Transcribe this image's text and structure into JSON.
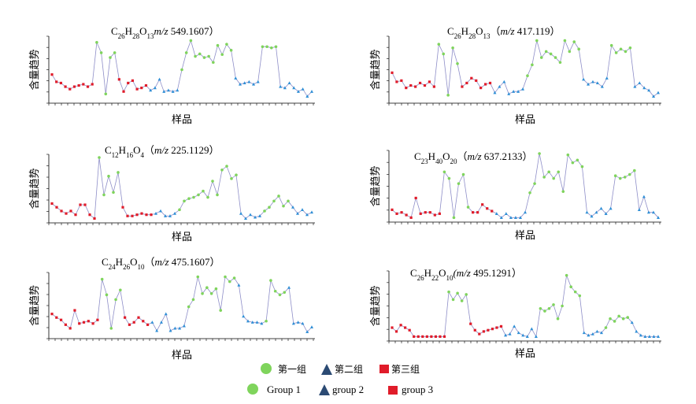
{
  "colors": {
    "group1": "#7fd45c",
    "group2": "#2f8fd6",
    "group3": "#e01c2a",
    "legend_triangle": "#2b4a73",
    "line": "#8e8ec8"
  },
  "legend": {
    "cn": [
      "第一组",
      "第二组",
      "第三组"
    ],
    "en": [
      "Group 1",
      "group 2",
      "group 3"
    ]
  },
  "chart_data": [
    {
      "type": "line",
      "title": {
        "prefix": "C26H28O13（",
        "mz": "m/z",
        "value": " 549.1607）",
        "formula": [
          [
            "C",
            ""
          ],
          [
            "26",
            "sub"
          ],
          [
            "H",
            ""
          ],
          [
            "28",
            "sub"
          ],
          [
            "O",
            ""
          ],
          [
            "13",
            "sub"
          ]
        ]
      },
      "xlabel": "样品",
      "ylabel": "含量趋势",
      "values": [
        0.42,
        0.3,
        0.28,
        0.22,
        0.18,
        0.22,
        0.24,
        0.26,
        0.22,
        0.26,
        0.95,
        0.78,
        0.1,
        0.7,
        0.78,
        0.34,
        0.14,
        0.28,
        0.32,
        0.18,
        0.2,
        0.24,
        0.16,
        0.2,
        0.34,
        0.14,
        0.16,
        0.14,
        0.16,
        0.5,
        0.78,
        0.98,
        0.72,
        0.76,
        0.7,
        0.72,
        0.62,
        0.9,
        0.75,
        0.92,
        0.82,
        0.36,
        0.26,
        0.28,
        0.3,
        0.26,
        0.3,
        0.88,
        0.88,
        0.86,
        0.88,
        0.22,
        0.2,
        0.28,
        0.2,
        0.14,
        0.18,
        0.06,
        0.14
      ],
      "groups": [
        3,
        3,
        3,
        3,
        3,
        3,
        3,
        3,
        3,
        3,
        1,
        1,
        1,
        1,
        1,
        3,
        3,
        3,
        3,
        3,
        3,
        3,
        2,
        2,
        2,
        2,
        2,
        2,
        2,
        1,
        1,
        1,
        1,
        1,
        1,
        1,
        1,
        1,
        1,
        1,
        1,
        2,
        2,
        2,
        2,
        2,
        2,
        1,
        1,
        1,
        1,
        2,
        2,
        2,
        2,
        2,
        2,
        2,
        2
      ]
    },
    {
      "type": "line",
      "title": {
        "prefix": "",
        "mz": "m/z",
        "value": " 417.119）",
        "formula": [
          [
            "C",
            ""
          ],
          [
            "26",
            "sub"
          ],
          [
            "H",
            ""
          ],
          [
            "28",
            "sub"
          ],
          [
            "O",
            ""
          ],
          [
            "13",
            "sub"
          ],
          [
            "（",
            ""
          ]
        ]
      },
      "xlabel": "样品",
      "ylabel": "含量趋势",
      "values": [
        0.45,
        0.3,
        0.32,
        0.2,
        0.24,
        0.22,
        0.28,
        0.24,
        0.3,
        0.22,
        0.92,
        0.76,
        0.08,
        0.86,
        0.6,
        0.22,
        0.28,
        0.36,
        0.32,
        0.2,
        0.26,
        0.28,
        0.12,
        0.22,
        0.3,
        0.1,
        0.14,
        0.14,
        0.18,
        0.4,
        0.58,
        0.98,
        0.7,
        0.8,
        0.76,
        0.7,
        0.62,
        0.98,
        0.8,
        0.96,
        0.84,
        0.34,
        0.26,
        0.3,
        0.28,
        0.22,
        0.36,
        0.9,
        0.78,
        0.84,
        0.8,
        0.86,
        0.22,
        0.28,
        0.2,
        0.16,
        0.06,
        0.12
      ],
      "groups": [
        3,
        3,
        3,
        3,
        3,
        3,
        3,
        3,
        3,
        3,
        1,
        1,
        1,
        1,
        1,
        3,
        3,
        3,
        3,
        3,
        3,
        3,
        2,
        2,
        2,
        2,
        2,
        2,
        2,
        1,
        1,
        1,
        1,
        1,
        1,
        1,
        1,
        1,
        1,
        1,
        1,
        2,
        2,
        2,
        2,
        2,
        2,
        1,
        1,
        1,
        1,
        1,
        2,
        2,
        2,
        2,
        2,
        2
      ]
    },
    {
      "type": "line",
      "title": {
        "prefix": "",
        "mz": "m/z",
        "value": " 225.1129）",
        "formula": [
          [
            "C",
            ""
          ],
          [
            "12",
            "sub"
          ],
          [
            "H",
            ""
          ],
          [
            "16",
            "sub"
          ],
          [
            "O",
            ""
          ],
          [
            "4",
            "sub"
          ],
          [
            "（",
            ""
          ]
        ]
      },
      "xlabel": "样品",
      "ylabel": "含量趋势",
      "values": [
        0.26,
        0.2,
        0.14,
        0.1,
        0.14,
        0.08,
        0.24,
        0.24,
        0.08,
        0.02,
        1.0,
        0.4,
        0.7,
        0.44,
        0.76,
        0.2,
        0.06,
        0.06,
        0.08,
        0.1,
        0.08,
        0.08,
        0.1,
        0.14,
        0.06,
        0.06,
        0.1,
        0.16,
        0.3,
        0.34,
        0.36,
        0.4,
        0.46,
        0.36,
        0.62,
        0.4,
        0.8,
        0.86,
        0.66,
        0.72,
        0.1,
        0.02,
        0.08,
        0.04,
        0.06,
        0.14,
        0.2,
        0.3,
        0.38,
        0.22,
        0.3,
        0.2,
        0.1,
        0.16,
        0.08,
        0.12
      ],
      "groups": [
        3,
        3,
        3,
        3,
        3,
        3,
        3,
        3,
        3,
        3,
        1,
        1,
        1,
        1,
        1,
        3,
        3,
        3,
        3,
        3,
        3,
        3,
        2,
        2,
        2,
        2,
        2,
        1,
        1,
        1,
        1,
        1,
        1,
        1,
        1,
        1,
        1,
        1,
        1,
        1,
        2,
        2,
        2,
        2,
        2,
        1,
        1,
        1,
        1,
        1,
        1,
        2,
        2,
        2,
        2,
        2
      ]
    },
    {
      "type": "line",
      "title": {
        "prefix": "",
        "mz": "m/z",
        "value": " 637.2133）",
        "formula": [
          [
            "C",
            ""
          ],
          [
            "23",
            "sub"
          ],
          [
            "H",
            ""
          ],
          [
            "40",
            "sub"
          ],
          [
            "O",
            ""
          ],
          [
            "20",
            "sub"
          ],
          [
            "（",
            ""
          ]
        ]
      },
      "xlabel": "样品",
      "ylabel": "含量趋势",
      "values": [
        0.14,
        0.08,
        0.1,
        0.06,
        0.02,
        0.32,
        0.08,
        0.1,
        0.1,
        0.06,
        0.08,
        0.72,
        0.62,
        0.02,
        0.54,
        0.68,
        0.18,
        0.1,
        0.1,
        0.22,
        0.16,
        0.12,
        0.08,
        0.02,
        0.08,
        0.02,
        0.02,
        0.02,
        0.1,
        0.4,
        0.54,
        1.0,
        0.64,
        0.72,
        0.62,
        0.72,
        0.42,
        0.98,
        0.86,
        0.9,
        0.8,
        0.1,
        0.04,
        0.1,
        0.16,
        0.08,
        0.16,
        0.66,
        0.62,
        0.64,
        0.68,
        0.74,
        0.14,
        0.34,
        0.1,
        0.1,
        0.02
      ],
      "groups": [
        3,
        3,
        3,
        3,
        3,
        3,
        3,
        3,
        3,
        3,
        3,
        1,
        1,
        1,
        1,
        1,
        1,
        3,
        3,
        3,
        3,
        3,
        2,
        2,
        2,
        2,
        2,
        2,
        2,
        1,
        1,
        1,
        1,
        1,
        1,
        1,
        1,
        1,
        1,
        1,
        1,
        2,
        2,
        2,
        2,
        2,
        2,
        1,
        1,
        1,
        1,
        1,
        2,
        2,
        2,
        2,
        2
      ]
    },
    {
      "type": "line",
      "title": {
        "prefix": "",
        "mz": "m/z",
        "value": " 475.1607）",
        "formula": [
          [
            "C",
            ""
          ],
          [
            "24",
            "sub"
          ],
          [
            "H",
            ""
          ],
          [
            "26",
            "sub"
          ],
          [
            "O",
            ""
          ],
          [
            "10",
            "sub"
          ],
          [
            "（",
            ""
          ]
        ]
      },
      "xlabel": "样品",
      "ylabel": "含量趋势",
      "values": [
        0.36,
        0.3,
        0.26,
        0.18,
        0.12,
        0.42,
        0.2,
        0.22,
        0.24,
        0.2,
        0.26,
        0.94,
        0.68,
        0.12,
        0.6,
        0.76,
        0.3,
        0.18,
        0.22,
        0.3,
        0.24,
        0.18,
        0.22,
        0.08,
        0.22,
        0.36,
        0.08,
        0.12,
        0.12,
        0.16,
        0.48,
        0.6,
        0.98,
        0.7,
        0.8,
        0.7,
        0.78,
        0.42,
        0.98,
        0.9,
        0.96,
        0.84,
        0.32,
        0.24,
        0.22,
        0.22,
        0.2,
        0.24,
        0.92,
        0.74,
        0.68,
        0.72,
        0.8,
        0.2,
        0.22,
        0.2,
        0.06,
        0.14
      ],
      "groups": [
        3,
        3,
        3,
        3,
        3,
        3,
        3,
        3,
        3,
        3,
        3,
        1,
        1,
        1,
        1,
        1,
        3,
        3,
        3,
        3,
        3,
        3,
        2,
        2,
        2,
        2,
        2,
        2,
        2,
        2,
        1,
        1,
        1,
        1,
        1,
        1,
        1,
        1,
        1,
        1,
        1,
        2,
        2,
        2,
        2,
        2,
        2,
        1,
        1,
        1,
        1,
        1,
        2,
        2,
        2,
        2,
        2,
        2
      ]
    },
    {
      "type": "line",
      "title": {
        "prefix": "",
        "mz": "(m/z",
        "value": " 495.1291）",
        "formula": [
          [
            "C",
            ""
          ],
          [
            "26",
            "sub"
          ],
          [
            "H",
            ""
          ],
          [
            "22",
            "sub"
          ],
          [
            "O",
            ""
          ],
          [
            "10",
            "sub"
          ],
          [
            "",
            ""
          ]
        ]
      },
      "xlabel": "样品",
      "ylabel": "含量趋势",
      "values": [
        0.16,
        0.1,
        0.2,
        0.16,
        0.12,
        0.02,
        0.02,
        0.02,
        0.02,
        0.02,
        0.02,
        0.02,
        0.02,
        0.72,
        0.6,
        0.7,
        0.58,
        0.68,
        0.22,
        0.12,
        0.06,
        0.1,
        0.12,
        0.14,
        0.16,
        0.18,
        0.04,
        0.06,
        0.18,
        0.08,
        0.04,
        0.02,
        0.14,
        0.02,
        0.46,
        0.42,
        0.46,
        0.52,
        0.3,
        0.5,
        0.98,
        0.8,
        0.72,
        0.66,
        0.08,
        0.04,
        0.06,
        0.1,
        0.08,
        0.16,
        0.3,
        0.26,
        0.34,
        0.3,
        0.32,
        0.24,
        0.1,
        0.04,
        0.02,
        0.02,
        0.02,
        0.02
      ],
      "groups": [
        3,
        3,
        3,
        3,
        3,
        3,
        3,
        3,
        3,
        3,
        3,
        3,
        3,
        1,
        1,
        1,
        1,
        1,
        3,
        3,
        3,
        3,
        3,
        3,
        3,
        3,
        2,
        2,
        2,
        2,
        2,
        2,
        2,
        2,
        1,
        1,
        1,
        1,
        1,
        1,
        1,
        1,
        1,
        1,
        2,
        2,
        2,
        2,
        2,
        1,
        1,
        1,
        1,
        1,
        1,
        2,
        2,
        2,
        2,
        2,
        2,
        2
      ]
    }
  ]
}
